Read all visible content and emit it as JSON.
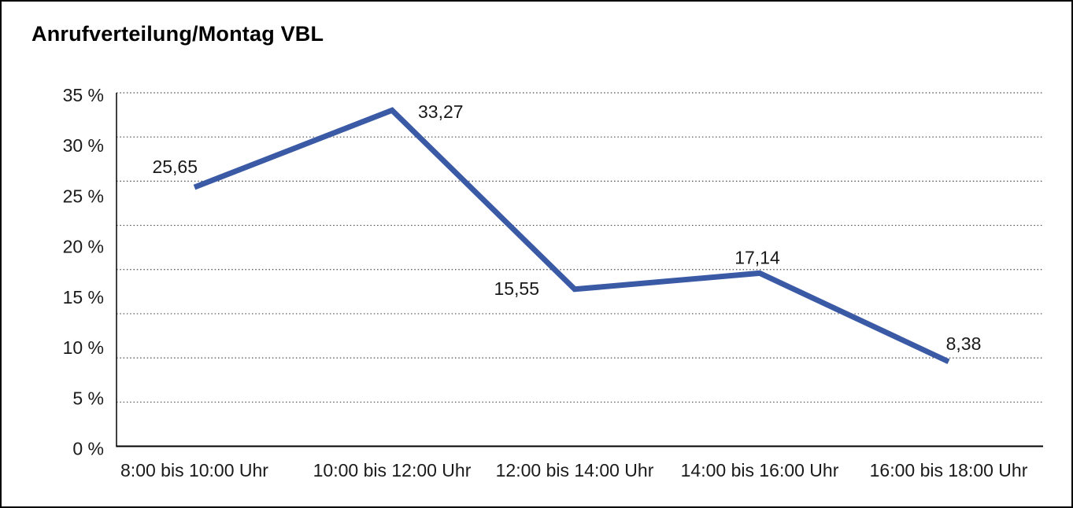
{
  "window": {
    "background": "#ffffff",
    "border_color": "#000000"
  },
  "chart_data": {
    "type": "line",
    "title": "Anrufverteilung/Montag VBL",
    "categories": [
      "8:00 bis 10:00 Uhr",
      "10:00 bis 12:00 Uhr",
      "12:00 bis 14:00 Uhr",
      "14:00 bis 16:00 Uhr",
      "16:00 bis 18:00 Uhr"
    ],
    "values": [
      25.65,
      33.27,
      15.55,
      17.14,
      8.38
    ],
    "value_labels": [
      "25,65",
      "33,27",
      "15,55",
      "17,14",
      "8,38"
    ],
    "ylabel": "",
    "xlabel": "",
    "ylim": [
      0,
      35
    ],
    "ytick_step": 5,
    "yticks": [
      "0 %",
      "5 %",
      "10 %",
      "15 %",
      "20 %",
      "25 %",
      "30 %",
      "35 %"
    ],
    "grid": "horizontal-dotted",
    "grid_divisions": 8,
    "legend": "none",
    "line_color": "#3B5AA5",
    "grid_color": "#4a4a4a",
    "axis_color": "#000000",
    "text_color": "#1a1a1a"
  }
}
